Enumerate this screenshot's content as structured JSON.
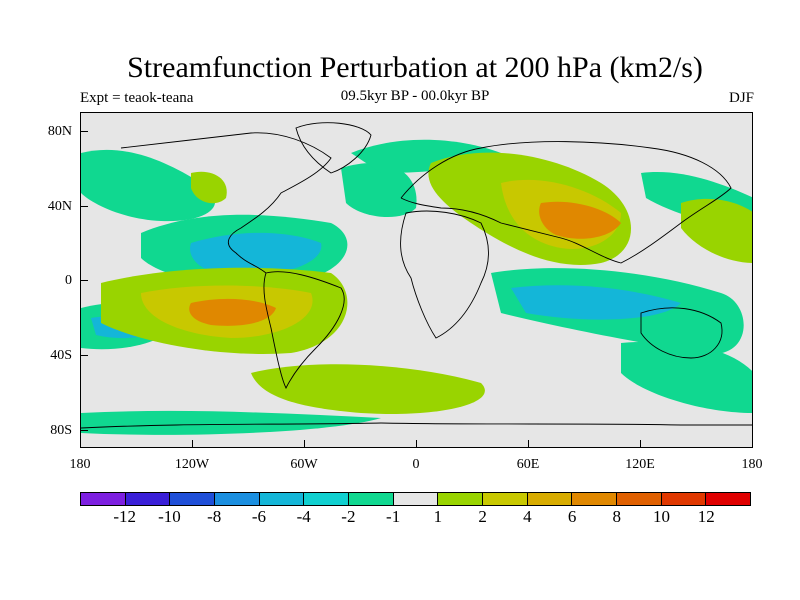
{
  "title": "Streamfunction Perturbation at 200 hPa (km2/s)",
  "left_label": "Expt = teaok-teana",
  "center_label": "09.5kyr BP - 00.0kyr BP",
  "right_label": "DJF",
  "map": {
    "projection": "cylindrical equidistant",
    "lon_range": [
      -180,
      180
    ],
    "lat_range": [
      -90,
      90
    ],
    "background_color": "#e6e6e6",
    "coastline_color": "#000000",
    "lat_ticks": [
      "80N",
      "40N",
      "0",
      "40S",
      "80S"
    ],
    "lon_ticks": [
      "180",
      "120W",
      "60W",
      "0",
      "60E",
      "120E",
      "180"
    ]
  },
  "colorbar": {
    "colors": [
      "#7d1fe0",
      "#3a1fd8",
      "#1f4fd8",
      "#1b8fe0",
      "#14b6d8",
      "#10d0d0",
      "#10d890",
      "#e6e6e6",
      "#99d400",
      "#c8c800",
      "#d8ac00",
      "#e08800",
      "#e06000",
      "#e03800",
      "#e00000"
    ],
    "labels": [
      "-12",
      "-10",
      "-8",
      "-6",
      "-4",
      "-2",
      "-1",
      "1",
      "2",
      "4",
      "6",
      "8",
      "10",
      "12"
    ]
  }
}
